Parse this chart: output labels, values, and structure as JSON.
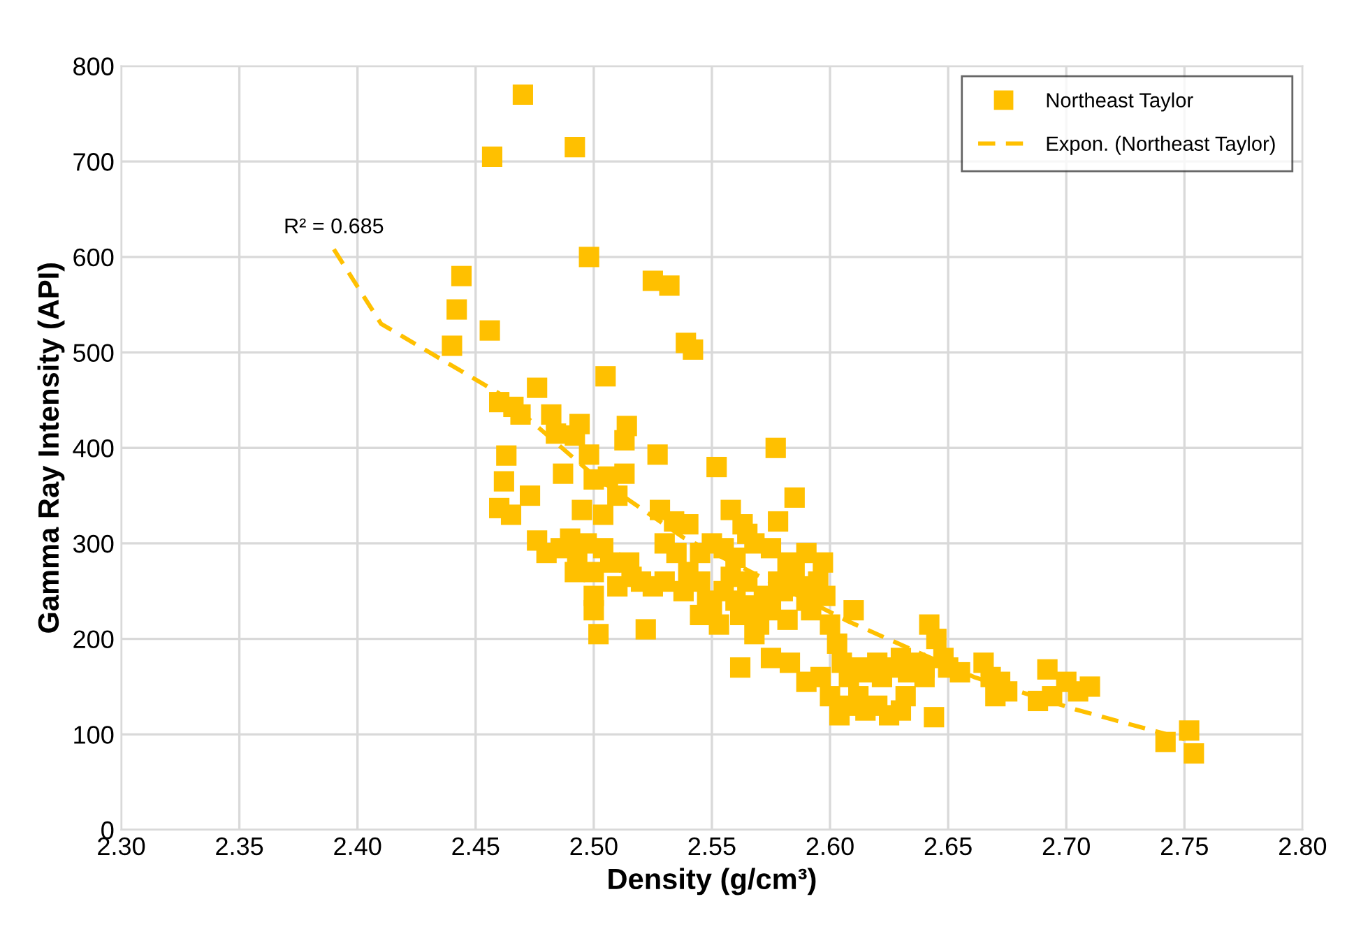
{
  "chart_data": {
    "type": "scatter",
    "xlabel": "Density (g/cm³)",
    "ylabel": "Gamma Ray Intensity (API)",
    "xlim": [
      2.3,
      2.8
    ],
    "xticks": [
      {
        "value": 2.3,
        "label": "2.30"
      },
      {
        "value": 2.35,
        "label": "2.35"
      },
      {
        "value": 2.4,
        "label": "2.40"
      },
      {
        "value": 2.45,
        "label": "2.45"
      },
      {
        "value": 2.5,
        "label": "2.50"
      },
      {
        "value": 2.55,
        "label": "2.55"
      },
      {
        "value": 2.6,
        "label": "2.60"
      },
      {
        "value": 2.65,
        "label": "2.65"
      },
      {
        "value": 2.7,
        "label": "2.70"
      },
      {
        "value": 2.75,
        "label": "2.75"
      },
      {
        "value": 2.8,
        "label": "2.80"
      }
    ],
    "ylim": [
      0,
      800
    ],
    "yticks": [
      0,
      100,
      200,
      300,
      400,
      500,
      600,
      700,
      800
    ],
    "grid": true,
    "legend": "top right",
    "annotations": [
      {
        "text": "R² = 0.685",
        "x": 2.39,
        "y": 608
      }
    ],
    "series": [
      {
        "name": "Northeast Taylor",
        "marker": "square",
        "color": "#ffc000",
        "x": [
          2.47,
          2.457,
          2.492,
          2.498,
          2.444,
          2.442,
          2.44,
          2.456,
          2.525,
          2.532,
          2.539,
          2.542,
          2.505,
          2.476,
          2.46,
          2.466,
          2.469,
          2.482,
          2.494,
          2.484,
          2.492,
          2.514,
          2.513,
          2.527,
          2.498,
          2.463,
          2.487,
          2.5,
          2.506,
          2.513,
          2.552,
          2.577,
          2.462,
          2.473,
          2.51,
          2.46,
          2.465,
          2.495,
          2.504,
          2.528,
          2.534,
          2.54,
          2.558,
          2.563,
          2.578,
          2.585,
          2.476,
          2.49,
          2.48,
          2.486,
          2.493,
          2.497,
          2.504,
          2.492,
          2.5,
          2.507,
          2.515,
          2.53,
          2.535,
          2.545,
          2.55,
          2.555,
          2.56,
          2.565,
          2.568,
          2.575,
          2.582,
          2.59,
          2.597,
          2.5,
          2.5,
          2.502,
          2.51,
          2.516,
          2.52,
          2.525,
          2.53,
          2.522,
          2.538,
          2.54,
          2.545,
          2.548,
          2.55,
          2.555,
          2.558,
          2.56,
          2.562,
          2.565,
          2.568,
          2.57,
          2.572,
          2.575,
          2.578,
          2.58,
          2.582,
          2.585,
          2.588,
          2.59,
          2.592,
          2.595,
          2.598,
          2.6,
          2.545,
          2.553,
          2.562,
          2.575,
          2.583,
          2.59,
          2.596,
          2.568,
          2.603,
          2.605,
          2.608,
          2.61,
          2.612,
          2.615,
          2.62,
          2.622,
          2.625,
          2.63,
          2.633,
          2.636,
          2.64,
          2.642,
          2.645,
          2.648,
          2.65,
          2.655,
          2.64,
          2.604,
          2.608,
          2.612,
          2.615,
          2.62,
          2.625,
          2.63,
          2.632,
          2.644,
          2.6,
          2.665,
          2.668,
          2.67,
          2.675,
          2.672,
          2.688,
          2.694,
          2.692,
          2.7,
          2.705,
          2.71,
          2.742,
          2.752,
          2.754
        ],
        "values": [
          770,
          705,
          715,
          600,
          580,
          545,
          507,
          523,
          575,
          570,
          510,
          503,
          475,
          463,
          448,
          443,
          435,
          435,
          425,
          415,
          413,
          423,
          408,
          393,
          393,
          392,
          373,
          367,
          370,
          373,
          380,
          400,
          365,
          350,
          350,
          337,
          330,
          335,
          330,
          335,
          323,
          320,
          335,
          320,
          323,
          348,
          303,
          305,
          290,
          295,
          290,
          300,
          295,
          270,
          270,
          280,
          280,
          300,
          290,
          290,
          300,
          295,
          285,
          310,
          300,
          295,
          280,
          290,
          280,
          245,
          230,
          205,
          255,
          265,
          260,
          255,
          260,
          210,
          250,
          270,
          260,
          240,
          230,
          250,
          265,
          240,
          225,
          260,
          235,
          215,
          245,
          230,
          260,
          250,
          220,
          270,
          255,
          240,
          230,
          260,
          245,
          215,
          225,
          215,
          170,
          180,
          175,
          155,
          160,
          205,
          195,
          175,
          160,
          230,
          170,
          165,
          175,
          160,
          170,
          180,
          165,
          175,
          170,
          215,
          200,
          180,
          170,
          165,
          160,
          120,
          130,
          140,
          125,
          130,
          120,
          125,
          140,
          118,
          140,
          175,
          160,
          140,
          145,
          155,
          135,
          140,
          168,
          155,
          145,
          150,
          92,
          104,
          80
        ]
      },
      {
        "name": "Expon. (Northeast Taylor)",
        "type": "line",
        "line_style": "dashed",
        "marker": "none",
        "color": "#ffc000",
        "x": [
          2.39,
          2.41,
          2.46,
          2.501,
          2.538,
          2.608,
          2.661,
          2.704,
          2.75
        ],
        "values": [
          608,
          530,
          457,
          369,
          306,
          218,
          160,
          126,
          95
        ]
      }
    ]
  }
}
